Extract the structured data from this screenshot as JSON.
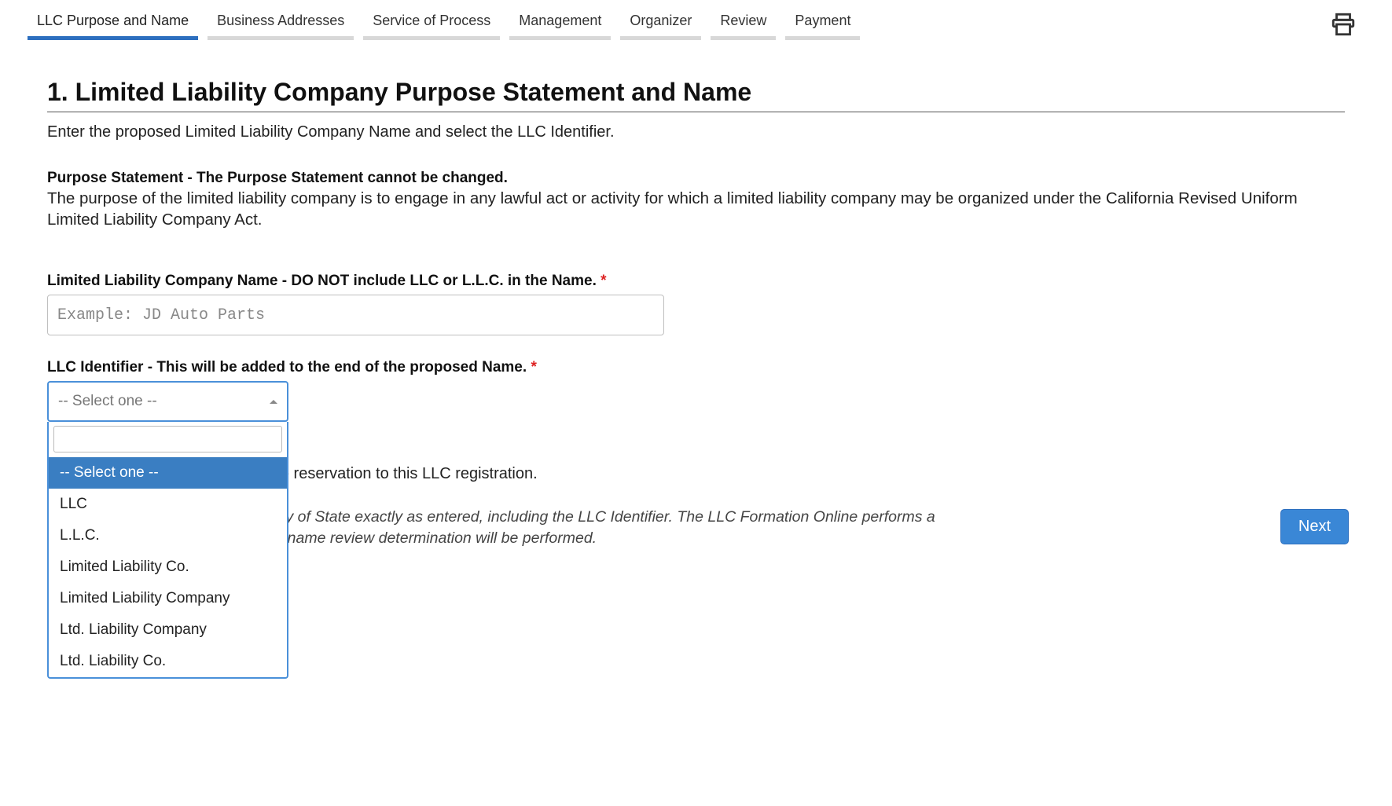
{
  "tabs": [
    {
      "label": "LLC Purpose and Name",
      "active": true
    },
    {
      "label": "Business Addresses",
      "active": false
    },
    {
      "label": "Service of Process",
      "active": false
    },
    {
      "label": "Management",
      "active": false
    },
    {
      "label": "Organizer",
      "active": false
    },
    {
      "label": "Review",
      "active": false
    },
    {
      "label": "Payment",
      "active": false
    }
  ],
  "page": {
    "title": "1. Limited Liability Company Purpose Statement and Name",
    "intro": "Enter the proposed Limited Liability Company Name and select the LLC Identifier.",
    "purpose_label": "Purpose Statement - The Purpose Statement cannot be changed.",
    "purpose_text": "The purpose of the limited liability company is to engage in any lawful act or activity for which a limited liability company may be organized under the California Revised Uniform Limited Liability Company Act.",
    "name_field_label": "Limited Liability Company Name - DO NOT include LLC or L.L.C. in the Name.",
    "name_placeholder": "Example: JD Auto Parts",
    "identifier_label": "LLC Identifier - This will be added to the end of the proposed Name.",
    "select_display": "-- Select one --",
    "reservation_partial": " a name and would like to apply the reservation to this LLC registration.",
    "note_line1_partial": "on the record of California Secretary of State exactly as entered, including the LLC Identifier. The LLC Formation Online performs a",
    "note_line2_partial": "e matches.  Once submitted, a final name review determination will be performed."
  },
  "dropdown": {
    "options": [
      {
        "label": "-- Select one --",
        "selected": true
      },
      {
        "label": "LLC",
        "selected": false
      },
      {
        "label": "L.L.C.",
        "selected": false
      },
      {
        "label": "Limited Liability Co.",
        "selected": false
      },
      {
        "label": "Limited Liability Company",
        "selected": false
      },
      {
        "label": "Ltd. Liability Company",
        "selected": false
      },
      {
        "label": "Ltd. Liability Co.",
        "selected": false
      }
    ]
  },
  "buttons": {
    "next": "Next"
  },
  "colors": {
    "accent": "#3a87d6",
    "tab_active": "#2d6fbf",
    "tab_inactive": "#d8d8d8",
    "dropdown_selected": "#3a7ec2",
    "required": "#d22"
  }
}
